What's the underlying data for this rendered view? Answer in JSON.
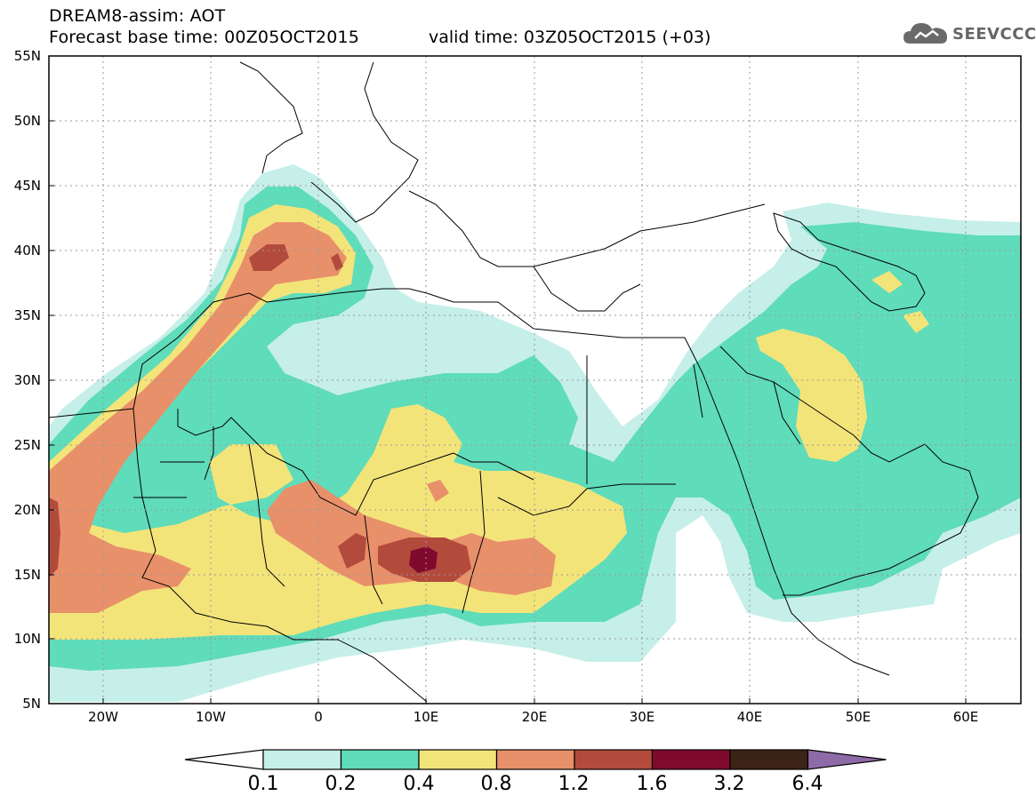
{
  "header": {
    "title_line1": "DREAM8-assim: AOT",
    "title_line2": "Forecast base time: 00Z05OCT2015",
    "valid_time": "valid time: 03Z05OCT2015 (+03)",
    "logo_text": "SEEVCCC",
    "logo_icon": "cloud-icon"
  },
  "map": {
    "lat_ticks": [
      "55N",
      "50N",
      "45N",
      "40N",
      "35N",
      "30N",
      "25N",
      "20N",
      "15N",
      "10N",
      "5N"
    ],
    "lon_ticks": [
      "20W",
      "10W",
      "0",
      "10E",
      "20E",
      "30E",
      "40E",
      "50E",
      "60E"
    ],
    "lat_range": [
      5,
      55
    ],
    "lon_range": [
      -25,
      65
    ],
    "grid": true
  },
  "colorbar": {
    "labels": [
      "0.1",
      "0.2",
      "0.4",
      "0.8",
      "1.2",
      "1.6",
      "3.2",
      "6.4"
    ],
    "colors": [
      "#c6efe9",
      "#5fdcba",
      "#f3e47a",
      "#e8906a",
      "#b34b3c",
      "#800a2e",
      "#3b2316"
    ],
    "over_color": "#8e6aa6",
    "under_color": "#ffffff"
  }
}
